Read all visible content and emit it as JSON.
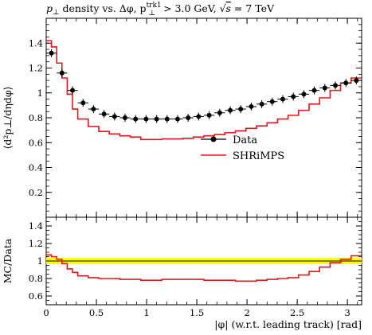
{
  "chart_data": [
    {
      "panel": "main",
      "type": "line",
      "title_parts": {
        "prefix": "p",
        "perp": "⊥",
        "mid": " density vs. Δφ, p",
        "sup": "trk1",
        "gt": " > 3.0 GeV, ",
        "sqrt": "√",
        "s": "s",
        "energy": " = 7 TeV"
      },
      "ylabel": "⟨d²p⊥/dηdφ⟩",
      "xlim": [
        0,
        3.14159
      ],
      "ylim": [
        0,
        1.6
      ],
      "yticks": [
        0.2,
        0.4,
        0.6,
        0.8,
        1.0,
        1.2,
        1.4
      ],
      "ytick_labels": [
        "0.2",
        "0.4",
        "0.6",
        "0.8",
        "1",
        "1.2",
        "1.4"
      ],
      "legend_position": "center-right",
      "series": [
        {
          "name": "Data",
          "style": "points",
          "color": "#000000",
          "x": [
            0.052,
            0.157,
            0.262,
            0.367,
            0.471,
            0.576,
            0.681,
            0.785,
            0.89,
            0.995,
            1.1,
            1.204,
            1.309,
            1.414,
            1.518,
            1.623,
            1.728,
            1.833,
            1.937,
            2.042,
            2.147,
            2.251,
            2.356,
            2.461,
            2.566,
            2.67,
            2.775,
            2.88,
            2.985,
            3.089
          ],
          "y": [
            1.32,
            1.16,
            1.02,
            0.92,
            0.87,
            0.83,
            0.81,
            0.8,
            0.79,
            0.79,
            0.79,
            0.79,
            0.79,
            0.8,
            0.81,
            0.82,
            0.84,
            0.86,
            0.87,
            0.89,
            0.91,
            0.93,
            0.95,
            0.97,
            0.99,
            1.02,
            1.04,
            1.06,
            1.08,
            1.1
          ]
        },
        {
          "name": "SHRiMPS",
          "style": "step",
          "color": "#e31a1c",
          "edges": [
            0,
            0.05236,
            0.10472,
            0.15708,
            0.20944,
            0.2618,
            0.31416,
            0.41888,
            0.5236,
            0.62832,
            0.73304,
            0.83776,
            0.94248,
            1.0472,
            1.15192,
            1.25664,
            1.36136,
            1.46608,
            1.5708,
            1.67552,
            1.78024,
            1.88496,
            1.98968,
            2.0944,
            2.19912,
            2.30384,
            2.40856,
            2.51328,
            2.618,
            2.72272,
            2.82744,
            2.93216,
            3.03688,
            3.14159
          ],
          "values": [
            1.42,
            1.37,
            1.24,
            1.12,
            0.99,
            0.87,
            0.79,
            0.73,
            0.69,
            0.67,
            0.655,
            0.645,
            0.625,
            0.625,
            0.63,
            0.63,
            0.635,
            0.645,
            0.655,
            0.665,
            0.68,
            0.695,
            0.715,
            0.735,
            0.76,
            0.79,
            0.82,
            0.86,
            0.91,
            0.96,
            1.02,
            1.08,
            1.12
          ]
        }
      ]
    },
    {
      "panel": "ratio",
      "type": "line",
      "ylabel": "MC/Data",
      "xlabel": "|φ| (w.r.t. leading track) [rad]",
      "xlim": [
        0,
        3.14159
      ],
      "ylim": [
        0.5,
        1.5
      ],
      "xticks": [
        0,
        0.5,
        1,
        1.5,
        2,
        2.5,
        3
      ],
      "xtick_labels": [
        "0",
        "0.5",
        "1",
        "1.5",
        "2",
        "2.5",
        "3"
      ],
      "yticks": [
        0.6,
        0.8,
        1.0,
        1.2,
        1.4
      ],
      "ytick_labels": [
        "0.6",
        "0.8",
        "1",
        "1.2",
        "1.4"
      ],
      "band": {
        "low": 0.965,
        "high": 1.035,
        "color": "#ffff00"
      },
      "series": [
        {
          "name": "SHRiMPS",
          "style": "step",
          "color": "#e31a1c",
          "edges": [
            0,
            0.05236,
            0.10472,
            0.15708,
            0.20944,
            0.2618,
            0.31416,
            0.41888,
            0.5236,
            0.62832,
            0.73304,
            0.83776,
            0.94248,
            1.0472,
            1.15192,
            1.25664,
            1.36136,
            1.46608,
            1.5708,
            1.67552,
            1.78024,
            1.88496,
            1.98968,
            2.0944,
            2.19912,
            2.30384,
            2.40856,
            2.51328,
            2.618,
            2.72272,
            2.82744,
            2.93216,
            3.03688,
            3.14159
          ],
          "values": [
            1.07,
            1.05,
            1.02,
            0.97,
            0.91,
            0.87,
            0.83,
            0.81,
            0.8,
            0.8,
            0.79,
            0.79,
            0.78,
            0.78,
            0.79,
            0.79,
            0.79,
            0.79,
            0.78,
            0.78,
            0.78,
            0.77,
            0.77,
            0.78,
            0.79,
            0.8,
            0.81,
            0.84,
            0.88,
            0.93,
            0.98,
            1.02,
            1.06
          ]
        }
      ]
    }
  ]
}
